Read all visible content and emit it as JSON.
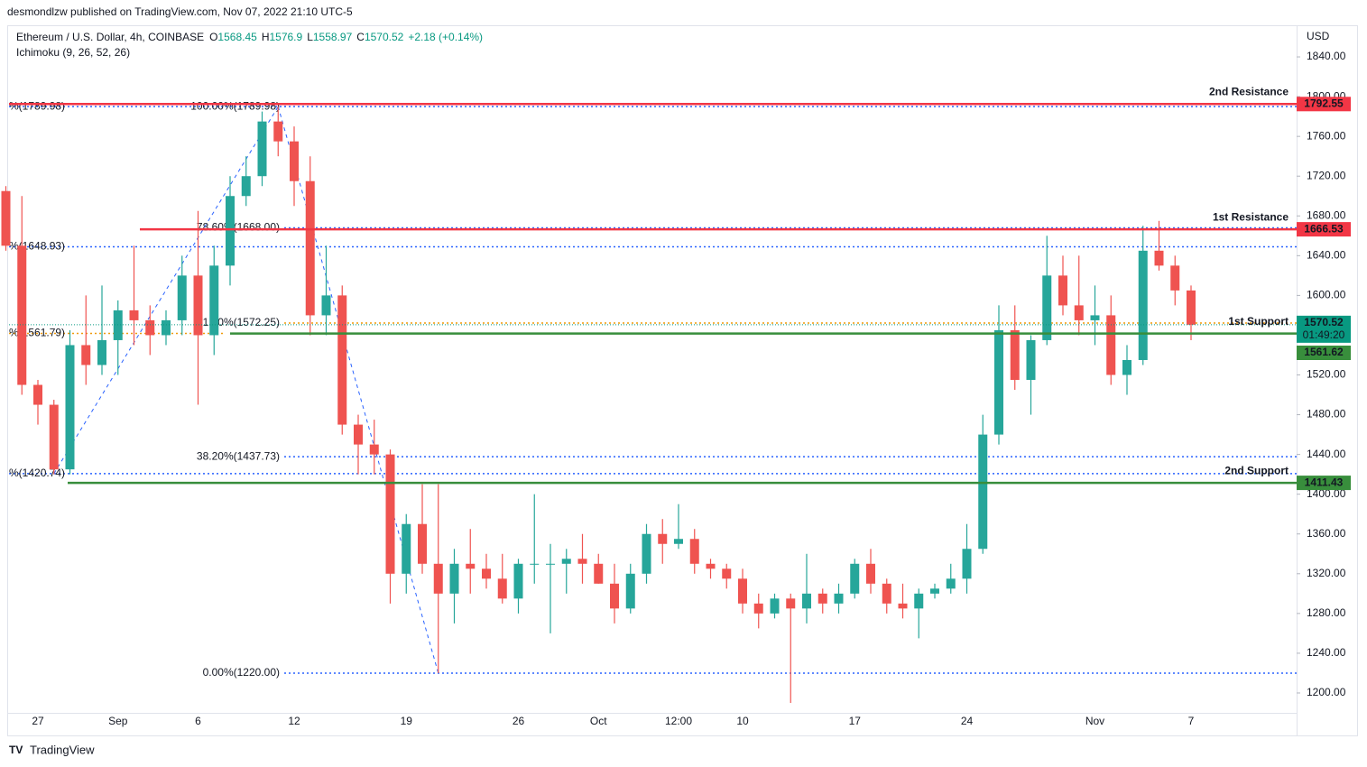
{
  "chart_data": {
    "type": "candlestick",
    "publisher": "desmondlzw published on TradingView.com, Nov 07, 2022 21:10 UTC-5",
    "title": "Ethereum / U.S. Dollar, 4h, COINBASE",
    "ohlc": [
      {
        "label": "O",
        "value": 1568.45
      },
      {
        "label": "H",
        "value": 1576.9
      },
      {
        "label": "L",
        "value": 1558.97
      },
      {
        "label": "C",
        "value": 1570.52
      }
    ],
    "change": "+2.18 (+0.14%)",
    "indicator": "Ichimoku (9, 26, 52, 26)",
    "currency": "USD",
    "brand": "TradingView",
    "colors": {
      "up": "#26a69a",
      "down": "#ef5350",
      "value": "#089981"
    },
    "categories": [
      null,
      null,
      "27",
      null,
      null,
      null,
      null,
      "Sep",
      null,
      null,
      null,
      null,
      "6",
      null,
      null,
      null,
      null,
      null,
      "12",
      null,
      null,
      null,
      null,
      null,
      null,
      "19",
      null,
      null,
      null,
      null,
      null,
      null,
      "26",
      null,
      null,
      null,
      null,
      "Oct",
      null,
      null,
      null,
      null,
      "12:00",
      null,
      null,
      null,
      "10",
      null,
      null,
      null,
      null,
      null,
      null,
      "17",
      null,
      null,
      null,
      null,
      null,
      null,
      "24",
      null,
      null,
      null,
      null,
      null,
      null,
      null,
      "Nov",
      null,
      null,
      null,
      null,
      null,
      "7"
    ],
    "candles": [
      [
        1705,
        1710,
        1645,
        1650
      ],
      [
        1650,
        1700,
        1500,
        1510
      ],
      [
        1510,
        1515,
        1470,
        1490
      ],
      [
        1490,
        1495,
        1420,
        1425
      ],
      [
        1425,
        1565,
        1420,
        1550
      ],
      [
        1550,
        1600,
        1510,
        1530
      ],
      [
        1530,
        1610,
        1520,
        1555
      ],
      [
        1555,
        1595,
        1520,
        1585
      ],
      [
        1585,
        1650,
        1550,
        1575
      ],
      [
        1575,
        1590,
        1540,
        1560
      ],
      [
        1560,
        1585,
        1550,
        1575
      ],
      [
        1575,
        1640,
        1560,
        1620
      ],
      [
        1620,
        1685,
        1490,
        1560
      ],
      [
        1560,
        1650,
        1540,
        1630
      ],
      [
        1630,
        1720,
        1610,
        1700
      ],
      [
        1700,
        1740,
        1690,
        1720
      ],
      [
        1720,
        1785,
        1710,
        1775
      ],
      [
        1775,
        1790,
        1740,
        1755
      ],
      [
        1755,
        1770,
        1690,
        1715
      ],
      [
        1715,
        1740,
        1560,
        1580
      ],
      [
        1580,
        1650,
        1560,
        1600
      ],
      [
        1600,
        1610,
        1460,
        1470
      ],
      [
        1470,
        1480,
        1420,
        1450
      ],
      [
        1450,
        1475,
        1420,
        1440
      ],
      [
        1440,
        1445,
        1290,
        1320
      ],
      [
        1320,
        1380,
        1300,
        1370
      ],
      [
        1370,
        1410,
        1320,
        1330
      ],
      [
        1330,
        1410,
        1220,
        1300
      ],
      [
        1300,
        1345,
        1270,
        1330
      ],
      [
        1330,
        1365,
        1300,
        1325
      ],
      [
        1325,
        1340,
        1305,
        1315
      ],
      [
        1315,
        1340,
        1290,
        1295
      ],
      [
        1295,
        1335,
        1280,
        1330
      ],
      [
        1330,
        1400,
        1310,
        1330
      ],
      [
        1330,
        1350,
        1260,
        1330
      ],
      [
        1330,
        1345,
        1300,
        1335
      ],
      [
        1335,
        1360,
        1310,
        1330
      ],
      [
        1330,
        1340,
        1310,
        1310
      ],
      [
        1310,
        1330,
        1270,
        1285
      ],
      [
        1285,
        1330,
        1280,
        1320
      ],
      [
        1320,
        1370,
        1310,
        1360
      ],
      [
        1360,
        1375,
        1330,
        1350
      ],
      [
        1350,
        1390,
        1345,
        1355
      ],
      [
        1355,
        1365,
        1320,
        1330
      ],
      [
        1330,
        1335,
        1315,
        1325
      ],
      [
        1325,
        1330,
        1305,
        1315
      ],
      [
        1315,
        1325,
        1280,
        1290
      ],
      [
        1290,
        1300,
        1265,
        1280
      ],
      [
        1280,
        1300,
        1275,
        1295
      ],
      [
        1295,
        1300,
        1190,
        1285
      ],
      [
        1285,
        1340,
        1270,
        1300
      ],
      [
        1300,
        1305,
        1280,
        1290
      ],
      [
        1290,
        1310,
        1280,
        1300
      ],
      [
        1300,
        1335,
        1295,
        1330
      ],
      [
        1330,
        1345,
        1300,
        1310
      ],
      [
        1310,
        1315,
        1280,
        1290
      ],
      [
        1290,
        1310,
        1275,
        1285
      ],
      [
        1285,
        1305,
        1255,
        1300
      ],
      [
        1300,
        1310,
        1295,
        1305
      ],
      [
        1305,
        1330,
        1300,
        1315
      ],
      [
        1315,
        1370,
        1300,
        1345
      ],
      [
        1345,
        1480,
        1340,
        1460
      ],
      [
        1460,
        1590,
        1450,
        1565
      ],
      [
        1565,
        1590,
        1505,
        1515
      ],
      [
        1515,
        1560,
        1480,
        1555
      ],
      [
        1555,
        1660,
        1550,
        1620
      ],
      [
        1620,
        1640,
        1580,
        1590
      ],
      [
        1590,
        1640,
        1560,
        1575
      ],
      [
        1575,
        1610,
        1550,
        1580
      ],
      [
        1580,
        1600,
        1510,
        1520
      ],
      [
        1520,
        1550,
        1500,
        1535
      ],
      [
        1535,
        1670,
        1530,
        1645
      ],
      [
        1645,
        1675,
        1625,
        1630
      ],
      [
        1630,
        1640,
        1590,
        1605
      ],
      [
        1605,
        1610,
        1555,
        1570.52
      ]
    ],
    "ylim": [
      1180,
      1870
    ],
    "yticks": [
      {
        "value": 1200,
        "label": "1200.00"
      },
      {
        "value": 1240,
        "label": "1240.00"
      },
      {
        "value": 1280,
        "label": "1280.00"
      },
      {
        "value": 1320,
        "label": "1320.00"
      },
      {
        "value": 1360,
        "label": "1360.00"
      },
      {
        "value": 1400,
        "label": "1400.00"
      },
      {
        "value": 1440,
        "label": "1440.00"
      },
      {
        "value": 1480,
        "label": "1480.00"
      },
      {
        "value": 1520,
        "label": "1520.00"
      },
      {
        "value": 1560,
        "label": "1560.00"
      },
      {
        "value": 1600,
        "label": "1600.00"
      },
      {
        "value": 1640,
        "label": "1640.00"
      },
      {
        "value": 1680,
        "label": "1680.00"
      },
      {
        "value": 1720,
        "label": "1720.00"
      },
      {
        "value": 1760,
        "label": "1760.00"
      },
      {
        "value": 1800,
        "label": "1800.00"
      },
      {
        "value": 1840,
        "label": "1840.00"
      }
    ],
    "fib_left": [
      {
        "value": 1789.98,
        "label": "%(1789.98)",
        "color": "#2962ff"
      },
      {
        "value": 1648.93,
        "label": "%(1648.93)",
        "color": "#2962ff"
      },
      {
        "value": 1561.79,
        "label": "%(1561.79)",
        "color": "#f09a0a"
      },
      {
        "value": 1420.74,
        "label": "%(1420.74)",
        "color": "#2962ff"
      }
    ],
    "fib_right": [
      {
        "value": 1789.98,
        "label": "100.00%(1789.98)",
        "color": "#2962ff"
      },
      {
        "value": 1668.0,
        "label": "78.60%(1668.00)",
        "color": "#2962ff"
      },
      {
        "value": 1572.25,
        "label": "61.80%(1572.25)",
        "color": "#f09a0a"
      },
      {
        "value": 1437.73,
        "label": "38.20%(1437.73)",
        "color": "#2962ff"
      },
      {
        "value": 1220.0,
        "label": "0.00%(1220.00)",
        "color": "#2962ff"
      }
    ],
    "levels": [
      {
        "name": "2nd Resistance",
        "value": 1792.55,
        "color": "#f23645"
      },
      {
        "name": "1st Resistance",
        "value": 1666.53,
        "color": "#f23645"
      },
      {
        "name": "1st Support",
        "value": 1561.62,
        "color": "#388e3c"
      },
      {
        "name": "2nd Support",
        "value": 1411.43,
        "color": "#388e3c"
      }
    ],
    "last_price": {
      "value": 1570.52,
      "countdown": "01:49:20"
    }
  }
}
